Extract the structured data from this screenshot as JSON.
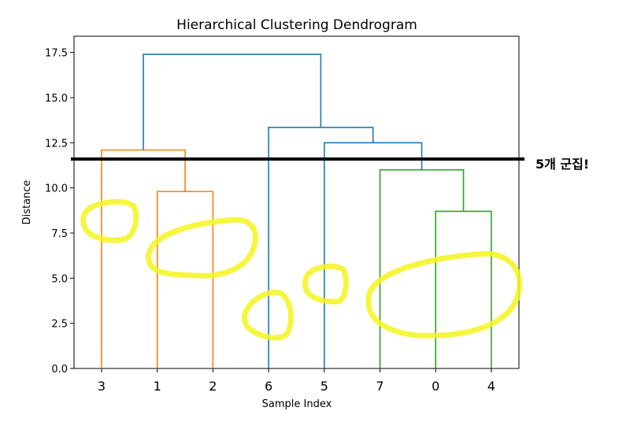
{
  "chart_data": {
    "type": "dendrogram",
    "title": "Hierarchical Clustering Dendrogram",
    "xlabel": "Sample Index",
    "ylabel": "Distance",
    "ylim": [
      0,
      18.4
    ],
    "yticks": [
      "0.0",
      "2.5",
      "5.0",
      "7.5",
      "10.0",
      "12.5",
      "15.0",
      "17.5"
    ],
    "ytick_values": [
      0,
      2.5,
      5,
      7.5,
      10,
      12.5,
      15,
      17.5
    ],
    "leaves": [
      "3",
      "1",
      "2",
      "6",
      "5",
      "7",
      "0",
      "4"
    ],
    "links": [
      {
        "left": "1",
        "right": "2",
        "height": 9.8,
        "color": "#ff7f0e"
      },
      {
        "left": "3",
        "right": "(1,2)",
        "height": 12.1,
        "color": "#ff7f0e"
      },
      {
        "left": "0",
        "right": "4",
        "height": 8.7,
        "color": "#2ca02c"
      },
      {
        "left": "7",
        "right": "(0,4)",
        "height": 11.0,
        "color": "#2ca02c"
      },
      {
        "left": "5",
        "right": "(7,0,4)",
        "height": 12.5,
        "color": "#1f77b4"
      },
      {
        "left": "6",
        "right": "(5,7,0,4)",
        "height": 13.35,
        "color": "#1f77b4"
      },
      {
        "left": "(3,1,2)",
        "right": "(6,5,7,0,4)",
        "height": 17.4,
        "color": "#1f77b4"
      }
    ],
    "cut_line": {
      "y": 11.6,
      "label": "5개 군집!"
    }
  }
}
